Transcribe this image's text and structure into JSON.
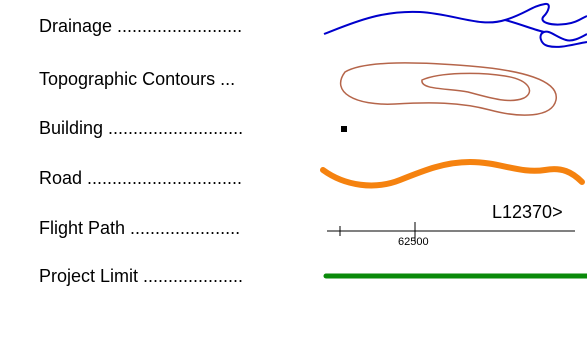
{
  "legend": {
    "items": [
      {
        "key": "drainage",
        "label": "Drainage .........................",
        "symbol": "wavy-line",
        "color": "#0000cc"
      },
      {
        "key": "contours",
        "label": "Topographic Contours ...",
        "symbol": "closed-contours",
        "color": "#b5654a"
      },
      {
        "key": "building",
        "label": "Building ...........................",
        "symbol": "square-dot",
        "color": "#000000"
      },
      {
        "key": "road",
        "label": "Road ...............................",
        "symbol": "thick-wavy-line",
        "color": "#f5820f"
      },
      {
        "key": "flight",
        "label": "Flight Path ......................",
        "symbol": "line-with-ticks",
        "color": "#000000",
        "line_label": "L12370>",
        "fiducial": "62500"
      },
      {
        "key": "limit",
        "label": "Project Limit ....................",
        "symbol": "thick-line",
        "color": "#0a8a0a"
      }
    ]
  }
}
